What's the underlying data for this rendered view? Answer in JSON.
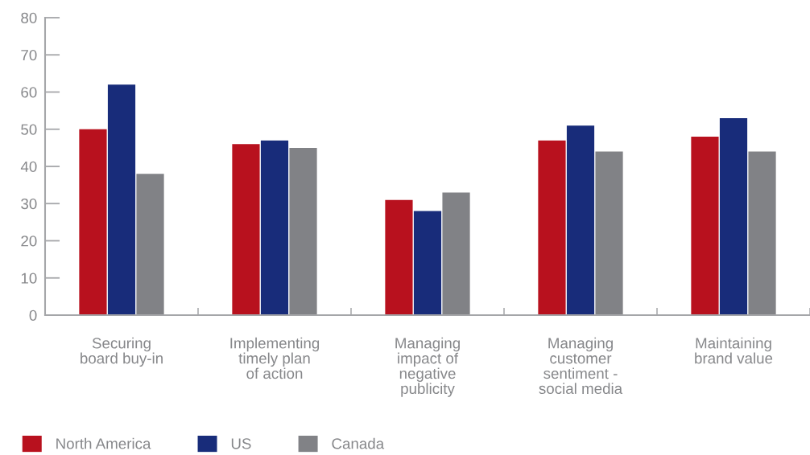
{
  "chart_data": {
    "type": "bar",
    "categories": [
      "Securing\nboard buy-in",
      "Implementing\ntimely plan\nof action",
      "Managing\nimpact of\nnegative\npublicity",
      "Managing\ncustomer\nsentiment -\nsocial media",
      "Maintaining\nbrand value"
    ],
    "series": [
      {
        "name": "North America",
        "color": "#b8111e",
        "values": [
          50,
          46,
          31,
          47,
          48
        ]
      },
      {
        "name": "US",
        "color": "#182c7a",
        "values": [
          62,
          47,
          28,
          51,
          53
        ]
      },
      {
        "name": "Canada",
        "color": "#818286",
        "values": [
          38,
          45,
          33,
          44,
          44
        ]
      }
    ],
    "ylim": [
      0,
      80
    ],
    "yticks": [
      0,
      10,
      20,
      30,
      40,
      50,
      60,
      70,
      80
    ],
    "legend": "bottom"
  }
}
